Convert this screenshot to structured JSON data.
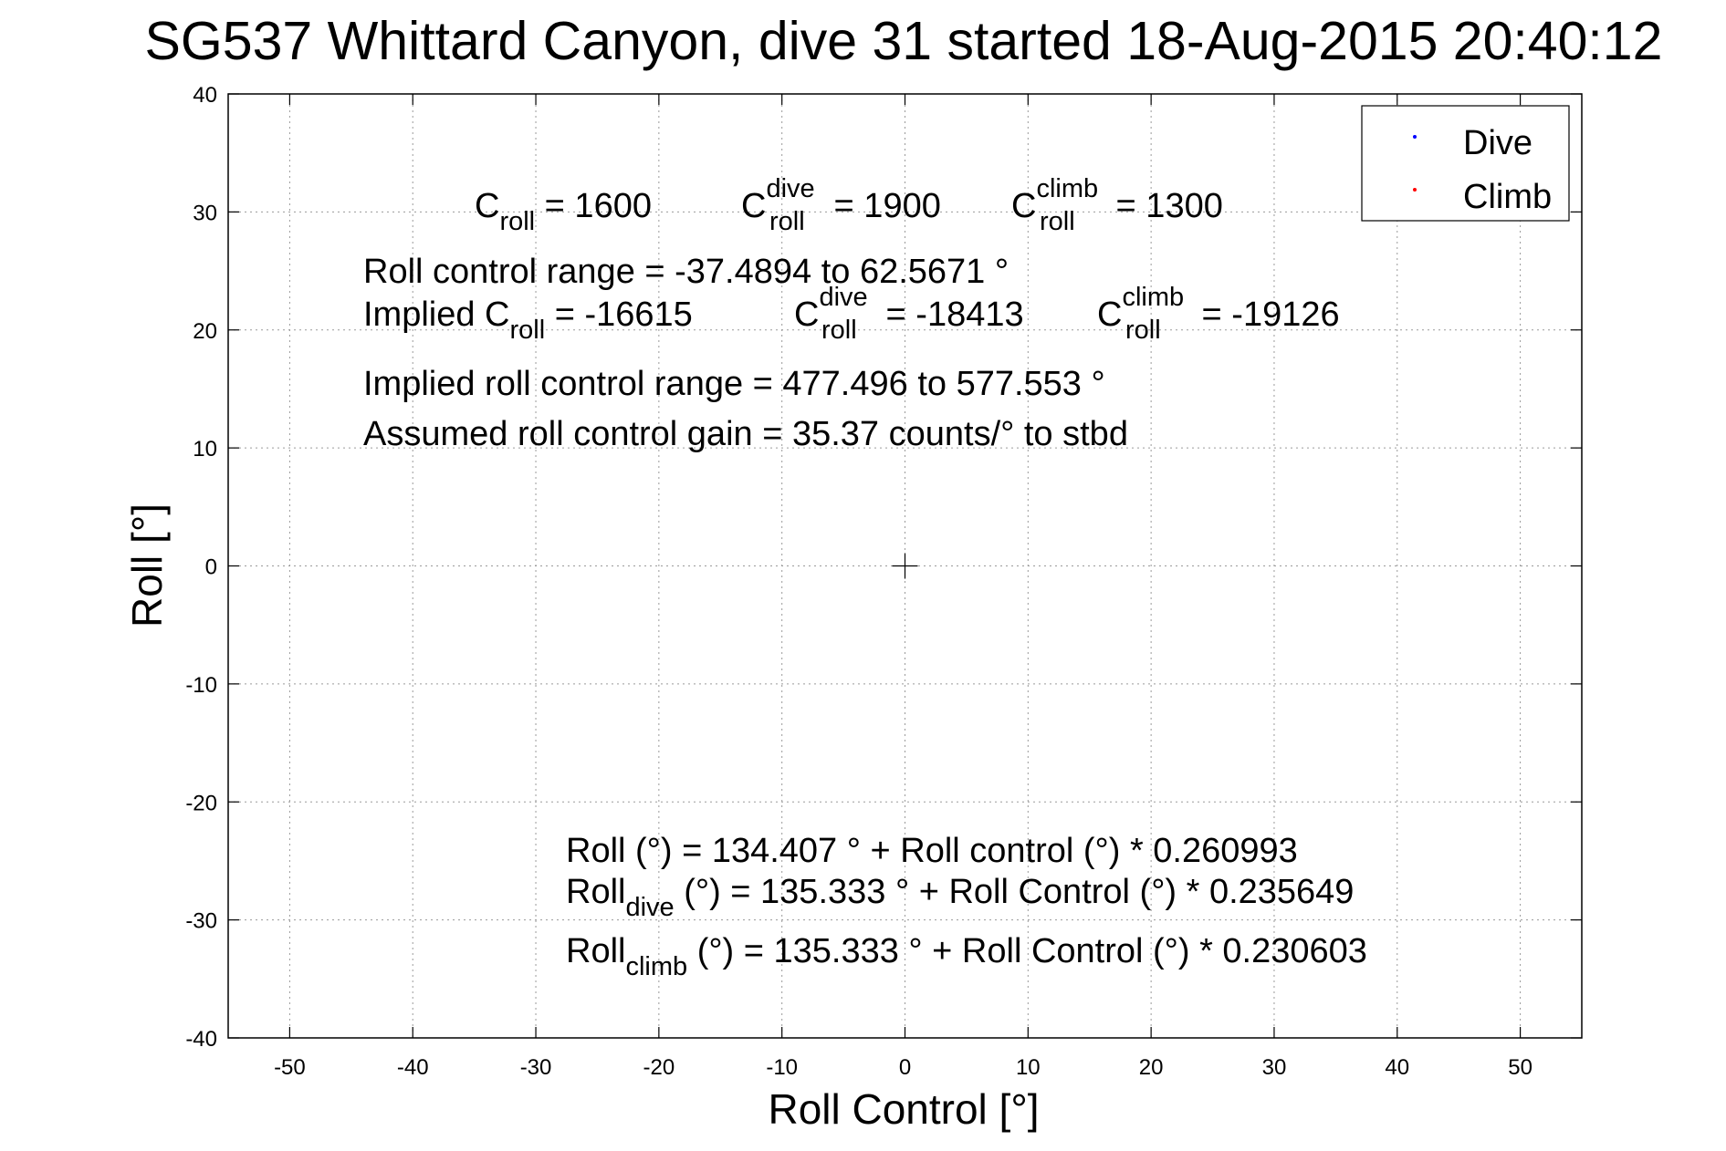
{
  "chart_data": {
    "type": "scatter",
    "title": "SG537 Whittard Canyon, dive 31 started 18-Aug-2015 20:40:12",
    "xlabel": "Roll Control [°]",
    "ylabel": "Roll [°]",
    "xlim": [
      -55,
      55
    ],
    "ylim": [
      -40,
      40
    ],
    "xticks": [
      -50,
      -40,
      -30,
      -20,
      -10,
      0,
      10,
      20,
      30,
      40,
      50
    ],
    "yticks": [
      -40,
      -30,
      -20,
      -10,
      0,
      10,
      20,
      30,
      40
    ],
    "grid": true,
    "legend_position": "top-right",
    "series": [
      {
        "name": "Dive",
        "color": "#0000ff",
        "points": []
      },
      {
        "name": "Climb",
        "color": "#ff0000",
        "points": []
      }
    ],
    "center_marker": {
      "x": 0,
      "y": 0,
      "symbol": "+"
    },
    "annotations": {
      "c_roll": {
        "base": "C",
        "sub": "roll",
        "rest": " = 1600"
      },
      "c_roll_dive": {
        "base": "C",
        "sup": "dive",
        "sub": "roll",
        "rest": " = 1900"
      },
      "c_roll_climb": {
        "base": "C",
        "sup": "climb",
        "sub": "roll",
        "rest": " = 1300"
      },
      "range_line": "Roll control range = -37.4894 to 62.5671 °",
      "implied_c_roll": {
        "base": "Implied C",
        "sub": "roll",
        "rest": " = -16615"
      },
      "implied_c_dive": {
        "base": "C",
        "sup": "dive",
        "sub": "roll",
        "rest": " = -18413"
      },
      "implied_c_climb": {
        "base": "C",
        "sup": "climb",
        "sub": "roll",
        "rest": " = -19126"
      },
      "implied_range": "Implied roll control range = 477.496 to 577.553 °",
      "gain": "Assumed roll control gain = 35.37 counts/° to stbd",
      "fit_all": "Roll (°) = 134.407 ° + Roll control (°) * 0.260993",
      "fit_dive": {
        "base": "Roll",
        "sub": "dive",
        "rest": " (°) = 135.333 ° + Roll Control (°) * 0.235649"
      },
      "fit_climb": {
        "base": "Roll",
        "sub": "climb",
        "rest": " (°) = 135.333 ° + Roll Control (°) * 0.230603"
      }
    }
  }
}
